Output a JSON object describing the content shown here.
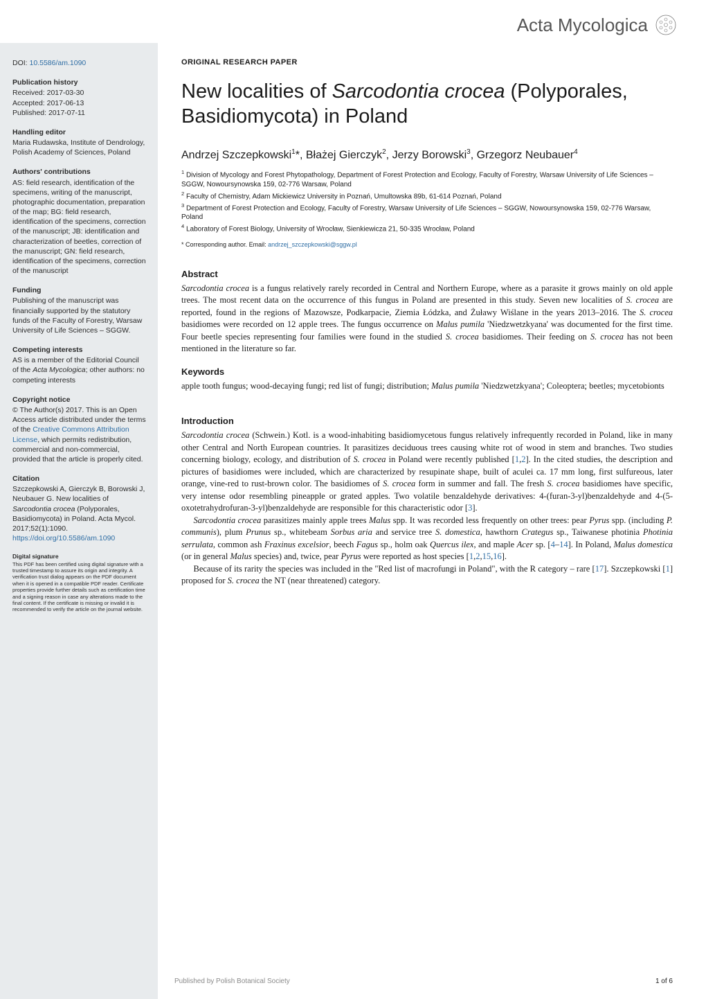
{
  "journal": {
    "name": "Acta Mycologica"
  },
  "sidebar": {
    "doi_label": "DOI: ",
    "doi": "10.5586/am.1090",
    "sections": [
      {
        "heading": "Publication history",
        "body": "Received: 2017-03-30\nAccepted: 2017-06-13\nPublished: 2017-07-11"
      },
      {
        "heading": "Handling editor",
        "body": "Maria Rudawska, Institute of Dendrology, Polish Academy of Sciences, Poland"
      },
      {
        "heading": "Authors' contributions",
        "body": "AS: field research, identification of the specimens, writing of the manuscript, photographic documentation, preparation of the map; BG: field research, identification of the specimens, correction of the manuscript; JB: identification and characterization of beetles, correction of the manuscript; GN: field research, identification of the specimens, correction of the manuscript"
      },
      {
        "heading": "Funding",
        "body": "Publishing of the manuscript was financially supported by the statutory funds of the Faculty of Forestry, Warsaw University of Life Sciences – SGGW."
      },
      {
        "heading": "Competing interests",
        "body_html": "AS is a member of the Editorial Council of the <i>Acta Mycologica</i>; other authors: no competing interests"
      },
      {
        "heading": "Copyright notice",
        "body_html": "© The Author(s) 2017. This is an Open Access article distributed under the terms of the <span class='link'>Creative Commons Attribution License</span>, which permits redistribution, commercial and non-commercial, provided that the article is properly cited."
      },
      {
        "heading": "Citation",
        "body_html": "Szczepkowski A, Gierczyk B, Borowski J, Neubauer G. New localities of <i>Sarcodontia crocea</i> (Polyporales, Basidiomycota) in Poland. Acta Mycol. 2017;52(1):1090. <span class='link'>https://doi.org/10.5586/am.1090</span>"
      }
    ],
    "signature": {
      "heading": "Digital signature",
      "body": "This PDF has been certified using digital signature with a trusted timestamp to assure its origin and integrity. A verification trust dialog appears on the PDF document when it is opened in a compatible PDF reader. Certificate properties provide further details such as certification time and a signing reason in case any alterations made to the final content. If the certificate is missing or invalid it is recommended to verify the article on the journal website."
    }
  },
  "main": {
    "paper_type": "ORIGINAL RESEARCH PAPER",
    "title_html": "New localities of <span class='italic'>Sarcodontia crocea</span> (Polyporales, Basidiomycota) in Poland",
    "authors_html": "Andrzej Szczepkowski<sup>1</sup>*, Błażej Gierczyk<sup>2</sup>, Jerzy Borowski<sup>3</sup>, Grzegorz Neubauer<sup>4</sup>",
    "affiliations": [
      "Division of Mycology and Forest Phytopathology, Department of Forest Protection and Ecology, Faculty of Forestry, Warsaw University of Life Sciences – SGGW, Nowoursynowska 159, 02-776 Warsaw, Poland",
      "Faculty of Chemistry, Adam Mickiewicz University in Poznań, Umultowska 89b, 61-614 Poznań, Poland",
      "Department of Forest Protection and Ecology, Faculty of Forestry, Warsaw University of Life Sciences – SGGW, Nowoursynowska 159, 02-776 Warsaw, Poland",
      "Laboratory of Forest Biology, University of Wrocław, Sienkiewicza 21, 50-335 Wrocław, Poland"
    ],
    "corresponding_label": "* Corresponding author. Email: ",
    "corresponding_email": "andrzej_szczepkowski@sggw.pl",
    "abstract": {
      "heading": "Abstract",
      "body_html": "<i>Sarcodontia crocea</i> is a fungus relatively rarely recorded in Central and Northern Europe, where as a parasite it grows mainly on old apple trees. The most recent data on the occurrence of this fungus in Poland are presented in this study. Seven new localities of <i>S. crocea</i> are reported, found in the regions of Mazowsze, Podkarpacie, Ziemia Łódzka, and Żuławy Wiślane in the years 2013–2016. The <i>S. crocea</i> basidiomes were recorded on 12 apple trees. The fungus occurrence on <i>Malus pumila</i> 'Niedzwetzkyana' was documented for the first time. Four beetle species representing four families were found in the studied <i>S. crocea</i> basidiomes. Their feeding on <i>S. crocea</i> has not been mentioned in the literature so far."
    },
    "keywords": {
      "heading": "Keywords",
      "body_html": "apple tooth fungus; wood-decaying fungi; red list of fungi; distribution; <i>Malus pumila</i> 'Niedzwetzkyana'; Coleoptera; beetles; mycetobionts"
    },
    "introduction": {
      "heading": "Introduction",
      "paragraphs_html": [
        "<i>Sarcodontia crocea</i> (Schwein.) Kotl. is a wood-inhabiting basidiomycetous fungus relatively infrequently recorded in Poland, like in many other Central and North European countries. It parasitizes deciduous trees causing white rot of wood in stem and branches. Two studies concerning biology, ecology, and distribution of <i>S. crocea</i> in Poland were recently published [<span class='link'>1</span>,<span class='link'>2</span>]. In the cited studies, the description and pictures of basidiomes were included, which are characterized by resupinate shape, built of aculei ca. 17 mm long, first sulfureous, later orange, vine-red to rust-brown color. The basidiomes of <i>S. crocea</i> form in summer and fall. The fresh <i>S. crocea</i> basidiomes have specific, very intense odor resembling pineapple or grated apples. Two volatile benzaldehyde derivatives: 4-(furan-3-yl)benzaldehyde and 4-(5-oxotetrahydrofuran-3-yl)benzaldehyde are responsible for this characteristic odor [<span class='link'>3</span>].",
        "<i>Sarcodontia crocea</i> parasitizes mainly apple trees <i>Malus</i> spp. It was recorded less frequently on other trees: pear <i>Pyrus</i> spp. (including <i>P. communis</i>), plum <i>Prunus</i> sp., whitebeam <i>Sorbus aria</i> and service tree <i>S. domestica</i>, hawthorn <i>Crategus</i> sp., Taiwanese photinia <i>Photinia serrulata</i>, common ash <i>Fraxinus excelsior</i>, beech <i>Fagus</i> sp., holm oak <i>Quercus ilex</i>, and maple <i>Acer</i> sp. [<span class='link'>4</span>–<span class='link'>14</span>]. In Poland, <i>Malus domestica</i> (or in general <i>Malus</i> species) and, twice, pear <i>Pyrus</i> were reported as host species [<span class='link'>1</span>,<span class='link'>2</span>,<span class='link'>15</span>,<span class='link'>16</span>].",
        "Because of its rarity the species was included in the \"Red list of macrofungi in Poland\", with the R category – rare [<span class='link'>17</span>]. Szczepkowski [<span class='link'>1</span>] proposed for <i>S. crocea</i> the NT (near threatened) category."
      ]
    }
  },
  "footer": {
    "publisher": "Published by Polish Botanical Society",
    "page": "1 of 6"
  },
  "colors": {
    "link": "#2e6da4",
    "sidebar_bg": "#e8ebed",
    "footer_text": "#8a8a8a"
  }
}
